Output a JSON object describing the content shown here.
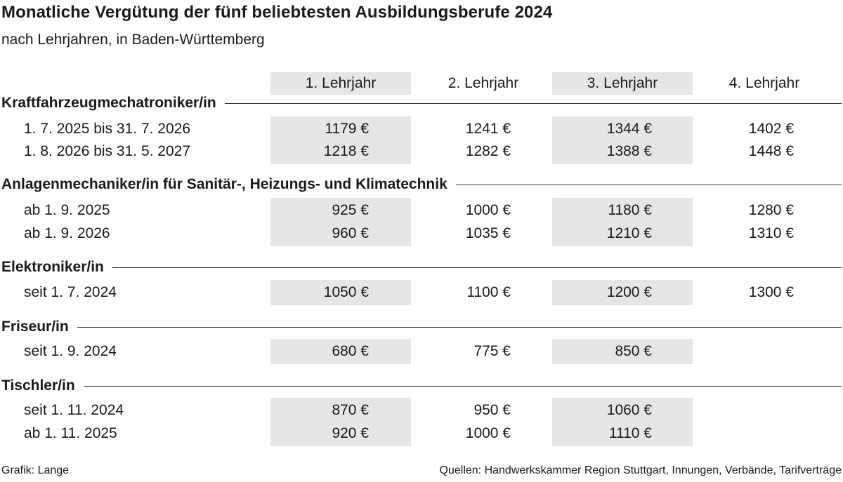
{
  "title": "Monatliche Vergütung der fünf beliebtesten Ausbildungsberufe 2024",
  "subtitle": "nach Lehrjahren, in Baden-Württemberg",
  "columns": [
    "1. Lehrjahr",
    "2. Lehrjahr",
    "3. Lehrjahr",
    "4. Lehrjahr"
  ],
  "groups": [
    {
      "name": "Kraftfahrzeugmechatroniker/in",
      "rows": [
        {
          "label": "1. 7. 2025 bis 31. 7. 2026",
          "values": [
            "1179 €",
            "1241 €",
            "1344 €",
            "1402 €"
          ]
        },
        {
          "label": "1. 8. 2026 bis 31. 5. 2027",
          "values": [
            "1218 €",
            "1282 €",
            "1388 €",
            "1448 €"
          ]
        }
      ]
    },
    {
      "name": "Anlagenmechaniker/in für Sanitär-, Heizungs- und Klimatechnik",
      "rows": [
        {
          "label": "ab 1. 9. 2025",
          "values": [
            "925 €",
            "1000 €",
            "1180 €",
            "1280 €"
          ]
        },
        {
          "label": "ab 1. 9. 2026",
          "values": [
            "960 €",
            "1035 €",
            "1210 €",
            "1310 €"
          ]
        }
      ]
    },
    {
      "name": "Elektroniker/in",
      "rows": [
        {
          "label": "seit 1. 7. 2024",
          "values": [
            "1050 €",
            "1100 €",
            "1200 €",
            "1300 €"
          ]
        }
      ]
    },
    {
      "name": "Friseur/in",
      "rows": [
        {
          "label": "seit 1. 9. 2024",
          "values": [
            "680 €",
            "775 €",
            "850 €",
            ""
          ]
        }
      ]
    },
    {
      "name": "Tischler/in",
      "rows": [
        {
          "label": "seit 1. 11. 2024",
          "values": [
            "870 €",
            "950 €",
            "1060 €",
            ""
          ]
        },
        {
          "label": "ab 1. 11. 2025",
          "values": [
            "920 €",
            "1000 €",
            "1110 €",
            ""
          ]
        }
      ]
    }
  ],
  "footer": {
    "credit": "Grafik: Lange",
    "sources": "Quellen: Handwerkskammer Region Stuttgart, Innungen, Verbände, Tarifverträge"
  }
}
